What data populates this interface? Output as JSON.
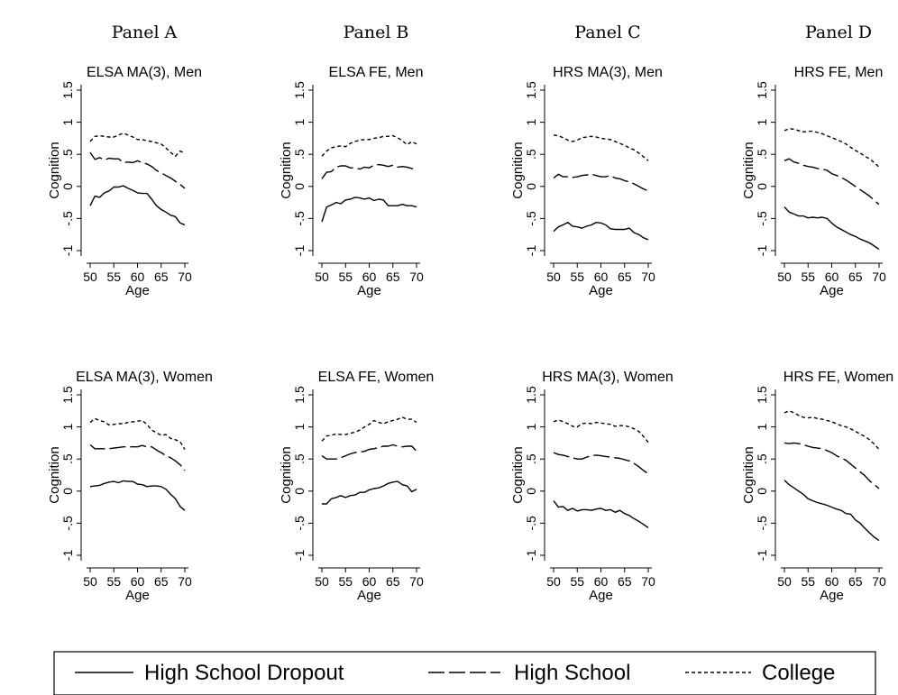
{
  "panel_headers": [
    "Panel A",
    "Panel B",
    "Panel C",
    "Panel D"
  ],
  "legend": [
    {
      "label": "High School Dropout",
      "style": "solid"
    },
    {
      "label": "High School",
      "style": "longdash"
    },
    {
      "label": "College",
      "style": "shortdash"
    }
  ],
  "chart_data": [
    {
      "type": "line",
      "title": "ELSA MA(3), Men",
      "xlabel": "Age",
      "ylabel": "Cognition",
      "xlim": [
        50,
        70
      ],
      "ylim": [
        -1,
        1.5
      ],
      "xticks": [
        "50",
        "55",
        "60",
        "65",
        "70"
      ],
      "yticks": [
        "-1",
        "-.5",
        "0",
        ".5",
        "1",
        "1.5"
      ],
      "x": [
        50,
        51,
        52,
        53,
        54,
        55,
        56,
        57,
        58,
        59,
        60,
        61,
        62,
        63,
        64,
        65,
        66,
        67,
        68,
        69,
        70
      ],
      "series": [
        {
          "name": "High School Dropout",
          "values": [
            -0.3,
            -0.15,
            -0.17,
            -0.1,
            -0.07,
            -0.01,
            -0.01,
            0.01,
            -0.03,
            -0.06,
            -0.1,
            -0.11,
            -0.11,
            -0.2,
            -0.3,
            -0.36,
            -0.4,
            -0.45,
            -0.47,
            -0.57,
            -0.6
          ]
        },
        {
          "name": "High School",
          "values": [
            0.53,
            0.42,
            0.45,
            0.41,
            0.44,
            0.43,
            0.43,
            0.37,
            0.38,
            0.37,
            0.4,
            0.37,
            0.35,
            0.31,
            0.25,
            0.21,
            0.17,
            0.13,
            0.08,
            0.03,
            -0.03
          ]
        },
        {
          "name": "College",
          "values": [
            0.7,
            0.78,
            0.79,
            0.78,
            0.77,
            0.77,
            0.8,
            0.83,
            0.8,
            0.77,
            0.73,
            0.73,
            0.71,
            0.7,
            0.68,
            0.66,
            0.6,
            0.53,
            0.47,
            0.55,
            0.52
          ]
        }
      ]
    },
    {
      "type": "line",
      "title": "ELSA FE, Men",
      "xlabel": "Age",
      "ylabel": "Cognition",
      "xlim": [
        50,
        70
      ],
      "ylim": [
        -1,
        1.5
      ],
      "xticks": [
        "50",
        "55",
        "60",
        "65",
        "70"
      ],
      "yticks": [
        "-1",
        "-.5",
        "0",
        ".5",
        "1",
        "1.5"
      ],
      "x": [
        50,
        51,
        52,
        53,
        54,
        55,
        56,
        57,
        58,
        59,
        60,
        61,
        62,
        63,
        64,
        65,
        66,
        67,
        68,
        69,
        70
      ],
      "series": [
        {
          "name": "High School Dropout",
          "values": [
            -0.55,
            -0.32,
            -0.29,
            -0.25,
            -0.27,
            -0.21,
            -0.2,
            -0.17,
            -0.18,
            -0.2,
            -0.18,
            -0.22,
            -0.2,
            -0.21,
            -0.3,
            -0.3,
            -0.3,
            -0.28,
            -0.3,
            -0.3,
            -0.32
          ]
        },
        {
          "name": "High School",
          "values": [
            0.12,
            0.22,
            0.23,
            0.3,
            0.32,
            0.32,
            0.29,
            0.29,
            0.27,
            0.3,
            0.29,
            0.33,
            0.34,
            0.33,
            0.31,
            0.33,
            0.3,
            0.31,
            0.3,
            0.28,
            0.24
          ]
        },
        {
          "name": "College",
          "values": [
            0.47,
            0.55,
            0.6,
            0.62,
            0.63,
            0.62,
            0.67,
            0.7,
            0.72,
            0.73,
            0.73,
            0.75,
            0.76,
            0.78,
            0.78,
            0.79,
            0.76,
            0.71,
            0.65,
            0.7,
            0.66
          ]
        }
      ]
    },
    {
      "type": "line",
      "title": "HRS MA(3), Men",
      "xlabel": "Age",
      "ylabel": "Cognition",
      "xlim": [
        50,
        70
      ],
      "ylim": [
        -1,
        1.5
      ],
      "xticks": [
        "50",
        "55",
        "60",
        "65",
        "70"
      ],
      "yticks": [
        "-1",
        "-.5",
        "0",
        ".5",
        "1",
        "1.5"
      ],
      "x": [
        50,
        51,
        52,
        53,
        54,
        55,
        56,
        57,
        58,
        59,
        60,
        61,
        62,
        63,
        64,
        65,
        66,
        67,
        68,
        69,
        70
      ],
      "series": [
        {
          "name": "High School Dropout",
          "values": [
            -0.7,
            -0.63,
            -0.6,
            -0.56,
            -0.62,
            -0.63,
            -0.65,
            -0.62,
            -0.6,
            -0.56,
            -0.57,
            -0.6,
            -0.66,
            -0.67,
            -0.67,
            -0.67,
            -0.65,
            -0.72,
            -0.75,
            -0.8,
            -0.83
          ]
        },
        {
          "name": "High School",
          "values": [
            0.13,
            0.19,
            0.15,
            0.15,
            0.14,
            0.15,
            0.17,
            0.18,
            0.19,
            0.17,
            0.15,
            0.15,
            0.17,
            0.13,
            0.12,
            0.09,
            0.07,
            0.04,
            0.0,
            -0.04,
            -0.07
          ]
        },
        {
          "name": "College",
          "values": [
            0.8,
            0.79,
            0.76,
            0.72,
            0.7,
            0.72,
            0.76,
            0.77,
            0.78,
            0.77,
            0.75,
            0.74,
            0.73,
            0.7,
            0.67,
            0.64,
            0.6,
            0.57,
            0.52,
            0.46,
            0.4
          ]
        }
      ]
    },
    {
      "type": "line",
      "title": "HRS FE, Men",
      "xlabel": "Age",
      "ylabel": "Cognition",
      "xlim": [
        50,
        70
      ],
      "ylim": [
        -1,
        1.5
      ],
      "xticks": [
        "50",
        "55",
        "60",
        "65",
        "70"
      ],
      "yticks": [
        "-1",
        "-.5",
        "0",
        ".5",
        "1",
        "1.5"
      ],
      "x": [
        50,
        51,
        52,
        53,
        54,
        55,
        56,
        57,
        58,
        59,
        60,
        61,
        62,
        63,
        64,
        65,
        66,
        67,
        68,
        69,
        70
      ],
      "series": [
        {
          "name": "High School Dropout",
          "values": [
            -0.32,
            -0.4,
            -0.43,
            -0.46,
            -0.46,
            -0.49,
            -0.48,
            -0.49,
            -0.48,
            -0.5,
            -0.57,
            -0.63,
            -0.67,
            -0.71,
            -0.75,
            -0.78,
            -0.82,
            -0.85,
            -0.88,
            -0.93,
            -0.98
          ]
        },
        {
          "name": "High School",
          "values": [
            0.4,
            0.43,
            0.38,
            0.36,
            0.33,
            0.31,
            0.3,
            0.28,
            0.27,
            0.25,
            0.2,
            0.17,
            0.14,
            0.1,
            0.05,
            0.0,
            -0.05,
            -0.1,
            -0.15,
            -0.22,
            -0.28
          ]
        },
        {
          "name": "College",
          "values": [
            0.87,
            0.9,
            0.89,
            0.87,
            0.85,
            0.86,
            0.86,
            0.84,
            0.82,
            0.79,
            0.76,
            0.73,
            0.7,
            0.66,
            0.61,
            0.56,
            0.52,
            0.47,
            0.43,
            0.37,
            0.3
          ]
        }
      ]
    },
    {
      "type": "line",
      "title": "ELSA MA(3), Women",
      "xlabel": "Age",
      "ylabel": "Cognition",
      "xlim": [
        50,
        70
      ],
      "ylim": [
        -1,
        1.5
      ],
      "xticks": [
        "50",
        "55",
        "60",
        "65",
        "70"
      ],
      "yticks": [
        "-1",
        "-.5",
        "0",
        ".5",
        "1",
        "1.5"
      ],
      "x": [
        50,
        51,
        52,
        53,
        54,
        55,
        56,
        57,
        58,
        59,
        60,
        61,
        62,
        63,
        64,
        65,
        66,
        67,
        68,
        69,
        70
      ],
      "series": [
        {
          "name": "High School Dropout",
          "values": [
            0.07,
            0.08,
            0.09,
            0.12,
            0.14,
            0.15,
            0.13,
            0.16,
            0.15,
            0.15,
            0.11,
            0.1,
            0.07,
            0.08,
            0.08,
            0.07,
            0.03,
            -0.05,
            -0.12,
            -0.24,
            -0.3
          ]
        },
        {
          "name": "High School",
          "values": [
            0.72,
            0.66,
            0.66,
            0.66,
            0.66,
            0.67,
            0.68,
            0.69,
            0.69,
            0.69,
            0.69,
            0.71,
            0.69,
            0.69,
            0.64,
            0.6,
            0.55,
            0.52,
            0.47,
            0.41,
            0.32
          ]
        },
        {
          "name": "College",
          "values": [
            1.07,
            1.13,
            1.1,
            1.08,
            1.03,
            1.04,
            1.05,
            1.05,
            1.07,
            1.08,
            1.09,
            1.1,
            1.04,
            0.95,
            0.91,
            0.87,
            0.88,
            0.82,
            0.8,
            0.77,
            0.65
          ]
        }
      ]
    },
    {
      "type": "line",
      "title": "ELSA FE, Women",
      "xlabel": "Age",
      "ylabel": "Cognition",
      "xlim": [
        50,
        70
      ],
      "ylim": [
        -1,
        1.5
      ],
      "xticks": [
        "50",
        "55",
        "60",
        "65",
        "70"
      ],
      "yticks": [
        "-1",
        "-.5",
        "0",
        ".5",
        "1",
        "1.5"
      ],
      "x": [
        50,
        51,
        52,
        53,
        54,
        55,
        56,
        57,
        58,
        59,
        60,
        61,
        62,
        63,
        64,
        65,
        66,
        67,
        68,
        69,
        70
      ],
      "series": [
        {
          "name": "High School Dropout",
          "values": [
            -0.2,
            -0.2,
            -0.12,
            -0.1,
            -0.07,
            -0.1,
            -0.07,
            -0.06,
            -0.02,
            -0.02,
            0.02,
            0.04,
            0.05,
            0.08,
            0.12,
            0.14,
            0.15,
            0.1,
            0.08,
            -0.01,
            0.03
          ]
        },
        {
          "name": "High School",
          "values": [
            0.55,
            0.5,
            0.5,
            0.5,
            0.52,
            0.55,
            0.58,
            0.6,
            0.61,
            0.62,
            0.65,
            0.66,
            0.68,
            0.7,
            0.7,
            0.72,
            0.7,
            0.69,
            0.7,
            0.7,
            0.62
          ]
        },
        {
          "name": "College",
          "values": [
            0.78,
            0.86,
            0.87,
            0.89,
            0.88,
            0.88,
            0.9,
            0.92,
            0.95,
            1.0,
            1.04,
            1.1,
            1.07,
            1.05,
            1.08,
            1.1,
            1.12,
            1.15,
            1.12,
            1.12,
            1.07
          ]
        }
      ]
    },
    {
      "type": "line",
      "title": "HRS MA(3), Women",
      "xlabel": "Age",
      "ylabel": "Cognition",
      "xlim": [
        50,
        70
      ],
      "ylim": [
        -1,
        1.5
      ],
      "xticks": [
        "50",
        "55",
        "60",
        "65",
        "70"
      ],
      "yticks": [
        "-1",
        "-.5",
        "0",
        ".5",
        "1",
        "1.5"
      ],
      "x": [
        50,
        51,
        52,
        53,
        54,
        55,
        56,
        57,
        58,
        59,
        60,
        61,
        62,
        63,
        64,
        65,
        66,
        67,
        68,
        69,
        70
      ],
      "series": [
        {
          "name": "High School Dropout",
          "values": [
            -0.15,
            -0.25,
            -0.24,
            -0.3,
            -0.27,
            -0.31,
            -0.29,
            -0.29,
            -0.3,
            -0.28,
            -0.27,
            -0.3,
            -0.29,
            -0.33,
            -0.3,
            -0.35,
            -0.38,
            -0.43,
            -0.47,
            -0.52,
            -0.57
          ]
        },
        {
          "name": "High School",
          "values": [
            0.6,
            0.57,
            0.56,
            0.54,
            0.52,
            0.5,
            0.5,
            0.53,
            0.55,
            0.56,
            0.55,
            0.54,
            0.53,
            0.52,
            0.51,
            0.49,
            0.47,
            0.43,
            0.38,
            0.32,
            0.27
          ]
        },
        {
          "name": "College",
          "values": [
            1.08,
            1.11,
            1.08,
            1.05,
            1.01,
            1.0,
            1.05,
            1.06,
            1.05,
            1.07,
            1.06,
            1.05,
            1.04,
            1.01,
            1.02,
            1.02,
            1.0,
            0.97,
            0.93,
            0.85,
            0.76
          ]
        }
      ]
    },
    {
      "type": "line",
      "title": "HRS FE, Women",
      "xlabel": "Age",
      "ylabel": "Cognition",
      "xlim": [
        50,
        70
      ],
      "ylim": [
        -1,
        1.5
      ],
      "xticks": [
        "50",
        "55",
        "60",
        "65",
        "70"
      ],
      "yticks": [
        "-1",
        "-.5",
        "0",
        ".5",
        "1",
        "1.5"
      ],
      "x": [
        50,
        51,
        52,
        53,
        54,
        55,
        56,
        57,
        58,
        59,
        60,
        61,
        62,
        63,
        64,
        65,
        66,
        67,
        68,
        69,
        70
      ],
      "series": [
        {
          "name": "High School Dropout",
          "values": [
            0.17,
            0.1,
            0.05,
            0.0,
            -0.05,
            -0.12,
            -0.15,
            -0.18,
            -0.2,
            -0.22,
            -0.25,
            -0.28,
            -0.3,
            -0.35,
            -0.36,
            -0.45,
            -0.5,
            -0.58,
            -0.65,
            -0.72,
            -0.77
          ]
        },
        {
          "name": "High School",
          "values": [
            0.75,
            0.74,
            0.75,
            0.74,
            0.72,
            0.7,
            0.68,
            0.67,
            0.66,
            0.63,
            0.6,
            0.55,
            0.52,
            0.48,
            0.42,
            0.36,
            0.3,
            0.24,
            0.16,
            0.1,
            0.04
          ]
        },
        {
          "name": "College",
          "values": [
            1.22,
            1.25,
            1.22,
            1.18,
            1.15,
            1.14,
            1.15,
            1.13,
            1.12,
            1.1,
            1.08,
            1.05,
            1.02,
            1.0,
            0.97,
            0.93,
            0.89,
            0.85,
            0.8,
            0.73,
            0.65
          ]
        }
      ]
    }
  ]
}
